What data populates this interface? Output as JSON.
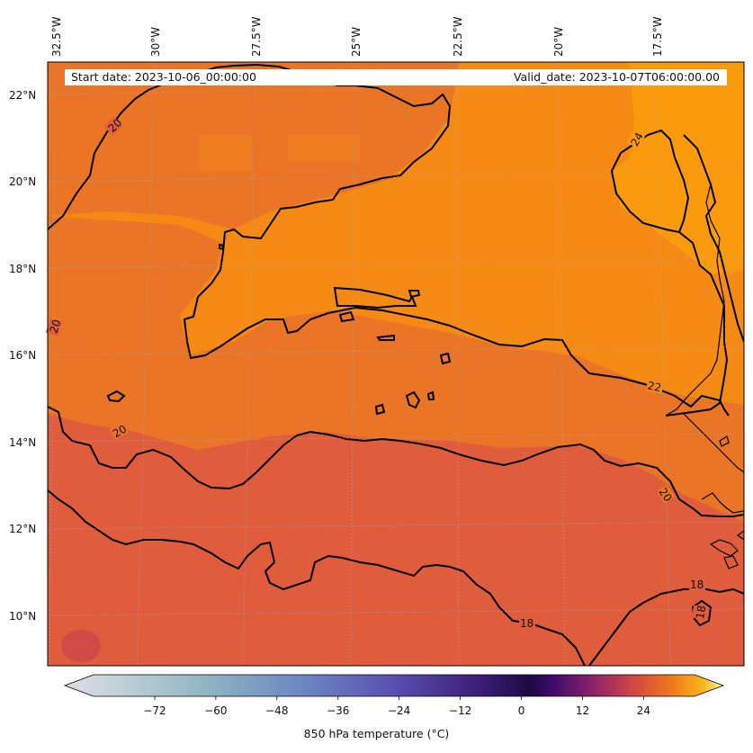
{
  "map": {
    "start_date_text": "Start date: 2023-10-06_00:00:00",
    "valid_date_text": "Valid_date: 2023-10-07T06:00:00.00",
    "lon_labels": [
      "32.5°W",
      "30°W",
      "27.5°W",
      "25°W",
      "22.5°W",
      "20°W",
      "17.5°W"
    ],
    "lat_labels": [
      "22°N",
      "20°N",
      "18°N",
      "16°N",
      "14°N",
      "12°N",
      "10°N"
    ],
    "contour_labels": [
      "20",
      "20",
      "20",
      "24",
      "22",
      "20",
      "18",
      "18",
      "18"
    ],
    "colors": {
      "warm_field": "#df5d3c",
      "mid_field": "#ea7527",
      "hot_field": "#f58a14",
      "hottest_field": "#fb9a0c",
      "contour": "#000000",
      "coastline": "#000000"
    }
  },
  "colorbar": {
    "label": "850 hPa temperature ($^\\circ$C)",
    "label_display": "850 hPa temperature (°C)",
    "ticks": [
      "−72",
      "−60",
      "−48",
      "−36",
      "−24",
      "−12",
      "0",
      "12",
      "24"
    ],
    "tick_values": [
      -72,
      -60,
      -48,
      -36,
      -24,
      -12,
      0,
      12,
      24
    ],
    "range": [
      -84,
      34
    ],
    "extend": "both"
  }
}
